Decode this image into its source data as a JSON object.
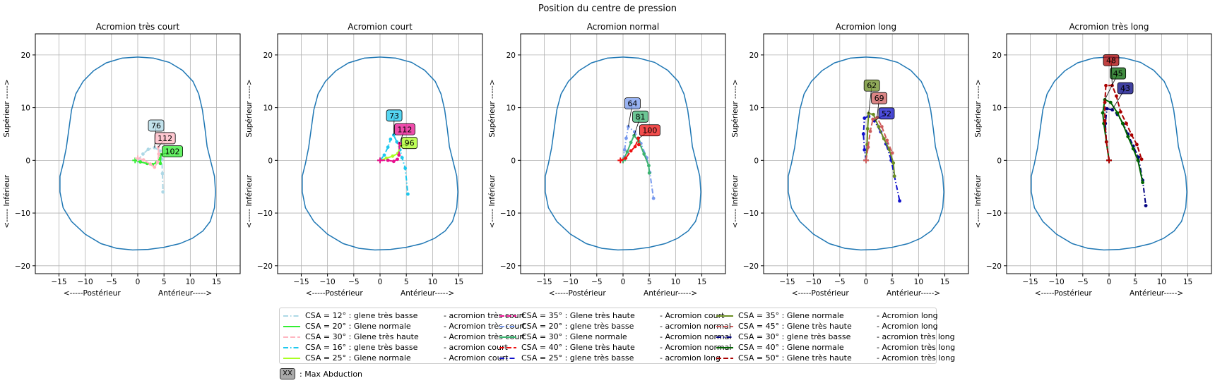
{
  "title": "Position du centre de pression",
  "legend_footnote": {
    "box_text": "XX",
    "text": ": Max Abduction"
  },
  "chart_data": [
    {
      "type": "line",
      "title": "Acromion très court",
      "xlabel": "<-----Postérieur                Antérieur----->",
      "ylabel": "<----- Inférieur                Supérieur ----->",
      "xlim": [
        -19.5,
        19.5
      ],
      "ylim": [
        -21.5,
        24
      ],
      "xticks": [
        -15,
        -10,
        -5,
        0,
        5,
        10,
        15
      ],
      "yticks": [
        -20,
        -10,
        0,
        10,
        20
      ],
      "grid": true,
      "series": [
        {
          "name": "CSA = 12° : glene très basse",
          "suffix": "-  acromion très court",
          "color": "#add8e6",
          "dash": "dashdot",
          "points": [
            [
              0,
              0
            ],
            [
              1,
              1.2
            ],
            [
              2,
              2.1
            ],
            [
              3.2,
              2.4
            ],
            [
              4.2,
              1.8
            ],
            [
              4.6,
              0.2
            ],
            [
              4.7,
              -2.5
            ],
            [
              4.8,
              -6
            ]
          ],
          "max": {
            "label": "76",
            "at": [
              3.2,
              2.4
            ],
            "box": [
              3.5,
              6.6
            ]
          }
        },
        {
          "name": "CSA = 20° : Glene normale",
          "suffix": "-  Acromion très court",
          "color": "#33ee33",
          "dash": "solid",
          "points": [
            [
              -0.5,
              0
            ],
            [
              0.5,
              -0.3
            ],
            [
              1.8,
              -0.6
            ],
            [
              2.8,
              -0.8
            ],
            [
              3.6,
              -0.4
            ],
            [
              4.2,
              0.3
            ],
            [
              4.4,
              1.1
            ],
            [
              4.3,
              -0.6
            ]
          ],
          "max": {
            "label": "102",
            "at": [
              4.4,
              1.1
            ],
            "box": [
              6.6,
              1.7
            ]
          }
        },
        {
          "name": "CSA = 30° : Glene très haute",
          "suffix": "-  Acromion très court",
          "color": "#ffb6c1",
          "dash": "dashed",
          "points": [
            [
              0,
              0.4
            ],
            [
              1.1,
              0.1
            ],
            [
              2.4,
              -0.7
            ],
            [
              3.2,
              -1.3
            ],
            [
              3.8,
              -0.3
            ],
            [
              4,
              1.2
            ],
            [
              3.9,
              2.5
            ]
          ],
          "max": {
            "label": "112",
            "at": [
              3.9,
              2.5
            ],
            "box": [
              5.2,
              4.2
            ]
          }
        }
      ]
    },
    {
      "type": "line",
      "title": "Acromion court",
      "xlabel": "<-----Postérieur                Antérieur----->",
      "ylabel": "<----- Inférieur                Supérieur ----->",
      "xlim": [
        -19.5,
        19.5
      ],
      "ylim": [
        -21.5,
        24
      ],
      "xticks": [
        -15,
        -10,
        -5,
        0,
        5,
        10,
        15
      ],
      "yticks": [
        -20,
        -10,
        0,
        10,
        20
      ],
      "grid": true,
      "series": [
        {
          "name": "CSA = 16° : glene très basse",
          "suffix": "-  acromion court",
          "color": "#1ec8ee",
          "dash": "dashdot",
          "points": [
            [
              0,
              0
            ],
            [
              0.8,
              1
            ],
            [
              1.5,
              2.5
            ],
            [
              2,
              4
            ],
            [
              2.6,
              4.8
            ],
            [
              3.2,
              3.5
            ],
            [
              3.8,
              2
            ],
            [
              4.2,
              0.5
            ],
            [
              4.8,
              -1.5
            ],
            [
              5.3,
              -6.4
            ]
          ],
          "max": {
            "label": "73",
            "at": [
              2.6,
              4.8
            ],
            "box": [
              2.7,
              8.5
            ]
          }
        },
        {
          "name": "CSA = 25° : Glene normale",
          "suffix": "-  Acromion court",
          "color": "#aaff22",
          "dash": "solid",
          "points": [
            [
              0,
              0
            ],
            [
              1.2,
              0.4
            ],
            [
              2.4,
              0.8
            ],
            [
              3.4,
              1.3
            ],
            [
              3.8,
              2.7
            ]
          ],
          "max": {
            "label": "96",
            "at": [
              3.8,
              2.7
            ],
            "box": [
              5.6,
              3.3
            ]
          }
        },
        {
          "name": "CSA = 35° : Glene très haute",
          "suffix": "-  Acromion court",
          "color": "#e8108f",
          "dash": "dashed",
          "points": [
            [
              0,
              0
            ],
            [
              1.5,
              0
            ],
            [
              2.6,
              -0.2
            ],
            [
              3.3,
              0.2
            ],
            [
              3.6,
              1
            ],
            [
              3.7,
              3.2
            ]
          ],
          "max": {
            "label": "112",
            "at": [
              3.7,
              3.2
            ],
            "box": [
              4.7,
              5.9
            ]
          }
        }
      ]
    },
    {
      "type": "line",
      "title": "Acromion normal",
      "xlabel": "<-----Postérieur                Antérieur----->",
      "ylabel": "<----- Inférieur                Supérieur ----->",
      "xlim": [
        -19.5,
        19.5
      ],
      "ylim": [
        -21.5,
        24
      ],
      "xticks": [
        -15,
        -10,
        -5,
        0,
        5,
        10,
        15
      ],
      "yticks": [
        -20,
        -10,
        0,
        10,
        20
      ],
      "grid": true,
      "series": [
        {
          "name": "CSA = 20° : glene très basse",
          "suffix": "-  acromion normal",
          "color": "#7799ee",
          "dash": "dashdot",
          "points": [
            [
              0,
              0
            ],
            [
              0.3,
              2
            ],
            [
              0.6,
              4.2
            ],
            [
              1,
              6.4
            ],
            [
              2.2,
              5.4
            ],
            [
              3.4,
              3.2
            ],
            [
              4.5,
              0.5
            ],
            [
              5.1,
              -2.3
            ],
            [
              5.8,
              -7.2
            ]
          ],
          "max": {
            "label": "64",
            "at": [
              1,
              6.4
            ],
            "box": [
              1.8,
              10.8
            ]
          }
        },
        {
          "name": "CSA = 30° : Glene normale",
          "suffix": "-  Acromion normal",
          "color": "#3cb371",
          "dash": "solid",
          "points": [
            [
              0,
              0
            ],
            [
              0.8,
              1.6
            ],
            [
              1.5,
              3.4
            ],
            [
              2.1,
              4.7
            ],
            [
              3,
              3.6
            ],
            [
              4,
              1.2
            ],
            [
              4.9,
              -1
            ],
            [
              5,
              -2.4
            ]
          ],
          "max": {
            "label": "81",
            "at": [
              2.1,
              4.7
            ],
            "box": [
              3.3,
              8.3
            ]
          }
        },
        {
          "name": "CSA = 40° : Glene très haute",
          "suffix": "-  Acromion normal",
          "color": "#ee1111",
          "dash": "dashed",
          "points": [
            [
              -0.5,
              0
            ],
            [
              0.5,
              0.4
            ],
            [
              1.5,
              1.8
            ],
            [
              2.3,
              2.6
            ],
            [
              2.9,
              4.2
            ],
            [
              3,
              3
            ]
          ],
          "max": {
            "label": "100",
            "at": [
              3,
              4.2
            ],
            "box": [
              5.1,
              5.7
            ]
          }
        }
      ]
    },
    {
      "type": "line",
      "title": "Acromion long",
      "xlabel": "<-----Postérieur                Antérieur----->",
      "ylabel": "<----- Inférieur                Supérieur ----->",
      "xlim": [
        -19.5,
        19.5
      ],
      "ylim": [
        -21.5,
        24
      ],
      "xticks": [
        -15,
        -10,
        -5,
        0,
        5,
        10,
        15
      ],
      "yticks": [
        -20,
        -10,
        0,
        10,
        20
      ],
      "grid": true,
      "series": [
        {
          "name": "CSA = 25° : glene très basse",
          "suffix": "-  acromion long",
          "color": "#1111cc",
          "dash": "dashdot",
          "points": [
            [
              0,
              0
            ],
            [
              -0.3,
              2
            ],
            [
              -0.5,
              5
            ],
            [
              -0.3,
              8
            ],
            [
              0.5,
              8.4
            ],
            [
              1.6,
              7.5
            ],
            [
              2.8,
              5.4
            ],
            [
              3.8,
              3.1
            ],
            [
              4.8,
              0
            ],
            [
              5.4,
              -3
            ],
            [
              6.4,
              -7.7
            ]
          ],
          "max": {
            "label": "52",
            "at": [
              1.6,
              7.5
            ],
            "box": [
              3.9,
              8.9
            ]
          }
        },
        {
          "name": "CSA = 35° : Glene normale",
          "suffix": "-  Acromion long",
          "color": "#6b8e23",
          "dash": "solid",
          "points": [
            [
              0,
              0
            ],
            [
              0.2,
              3
            ],
            [
              0.3,
              6
            ],
            [
              0.5,
              8.9
            ],
            [
              1.4,
              8.7
            ],
            [
              2.4,
              6.4
            ],
            [
              3.4,
              4.1
            ],
            [
              4.4,
              2.1
            ],
            [
              5.2,
              -0.5
            ],
            [
              5.4,
              -3
            ]
          ],
          "max": {
            "label": "62",
            "at": [
              0.5,
              8.9
            ],
            "box": [
              1.1,
              14.2
            ]
          }
        },
        {
          "name": "CSA = 45° : Glene très haute",
          "suffix": "-  Acromion long",
          "color": "#cd5c5c",
          "dash": "dashed",
          "points": [
            [
              0,
              0
            ],
            [
              0.4,
              2.5
            ],
            [
              0.8,
              5.5
            ],
            [
              1.3,
              7.8
            ],
            [
              2.1,
              8.1
            ],
            [
              3,
              6.4
            ],
            [
              4,
              3.8
            ],
            [
              5,
              1.4
            ]
          ],
          "max": {
            "label": "69",
            "at": [
              2.1,
              8.1
            ],
            "box": [
              2.5,
              11.8
            ]
          }
        }
      ]
    },
    {
      "type": "line",
      "title": "Acromion très long",
      "xlabel": "<-----Postérieur                Antérieur----->",
      "ylabel": "<----- Inférieur                Supérieur ----->",
      "xlim": [
        -19.5,
        19.5
      ],
      "ylim": [
        -21.5,
        24
      ],
      "xticks": [
        -15,
        -10,
        -5,
        0,
        5,
        10,
        15
      ],
      "yticks": [
        -20,
        -10,
        0,
        10,
        20
      ],
      "grid": true,
      "series": [
        {
          "name": "CSA = 30° : glene très basse",
          "suffix": "-  acromion très long",
          "color": "#000080",
          "dash": "dashdot",
          "points": [
            [
              0,
              0
            ],
            [
              -0.5,
              3.5
            ],
            [
              -0.7,
              7
            ],
            [
              -0.4,
              9.8
            ],
            [
              0.6,
              9.6
            ],
            [
              1.6,
              8.7
            ],
            [
              2.7,
              6.9
            ],
            [
              3.6,
              5
            ],
            [
              4.6,
              2.7
            ],
            [
              5.6,
              0.6
            ],
            [
              6.4,
              -3.8
            ],
            [
              7,
              -8.6
            ]
          ],
          "max": {
            "label": "43",
            "at": [
              0.6,
              9.6
            ],
            "box": [
              3.1,
              13.7
            ]
          }
        },
        {
          "name": "CSA = 40° : Glene normale",
          "suffix": "-  Acromion très long",
          "color": "#006400",
          "dash": "solid",
          "points": [
            [
              0,
              0
            ],
            [
              -0.5,
              3.5
            ],
            [
              -1,
              7
            ],
            [
              -1.2,
              9
            ],
            [
              -0.8,
              11.5
            ],
            [
              0.3,
              11
            ],
            [
              1.6,
              9
            ],
            [
              2.6,
              7
            ],
            [
              3.6,
              4.5
            ],
            [
              4.6,
              2.2
            ],
            [
              5.5,
              0
            ],
            [
              6.4,
              -4.2
            ]
          ],
          "max": {
            "label": "45",
            "at": [
              -0.8,
              11.5
            ],
            "box": [
              1.7,
              16.5
            ]
          }
        },
        {
          "name": "CSA = 50° : Glene très haute",
          "suffix": "-  Acromion très long",
          "color": "#aa0000",
          "dash": "dashed",
          "points": [
            [
              0,
              0
            ],
            [
              -0.5,
              3.5
            ],
            [
              -0.8,
              7.5
            ],
            [
              -0.8,
              11
            ],
            [
              -0.6,
              14.2
            ],
            [
              0.6,
              14.2
            ],
            [
              1.4,
              12.2
            ],
            [
              2.2,
              9.2
            ],
            [
              3.3,
              7
            ],
            [
              4.3,
              4.8
            ],
            [
              5.3,
              3
            ],
            [
              6.2,
              0.2
            ]
          ],
          "max": {
            "label": "48",
            "at": [
              0.6,
              14.2
            ],
            "box": [
              0.4,
              19
            ]
          }
        }
      ]
    }
  ]
}
